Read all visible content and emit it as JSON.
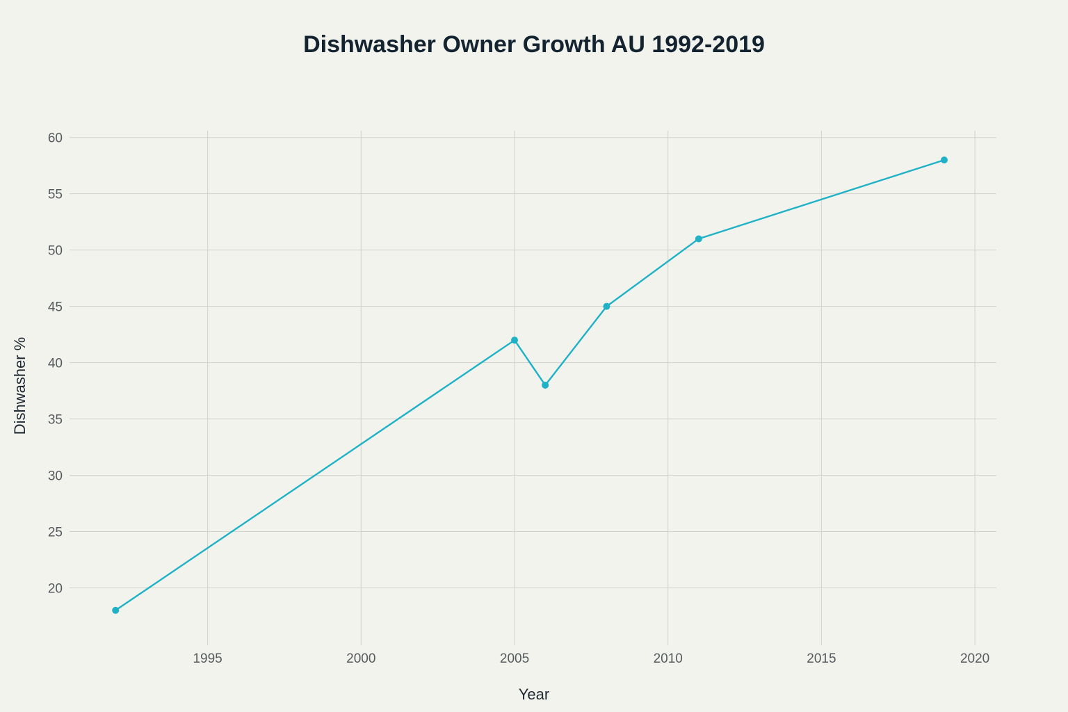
{
  "chart_data": {
    "type": "line",
    "title": "Dishwasher Owner Growth AU 1992-2019",
    "xlabel": "Year",
    "ylabel": "Dishwasher %",
    "x": [
      1992,
      2005,
      2006,
      2008,
      2011,
      2019
    ],
    "series": [
      {
        "values": [
          18,
          42,
          38,
          45,
          51,
          58
        ]
      }
    ],
    "xlim": [
      1990.5,
      2020.7
    ],
    "ylim": [
      14.9,
      60.6
    ],
    "xticks": [
      1995,
      2000,
      2005,
      2010,
      2015,
      2020
    ],
    "yticks": [
      20,
      25,
      30,
      35,
      40,
      45,
      50,
      55,
      60
    ],
    "grid": true,
    "colors": {
      "series": "#1fb1c6",
      "background": "#f3f3ee"
    }
  }
}
